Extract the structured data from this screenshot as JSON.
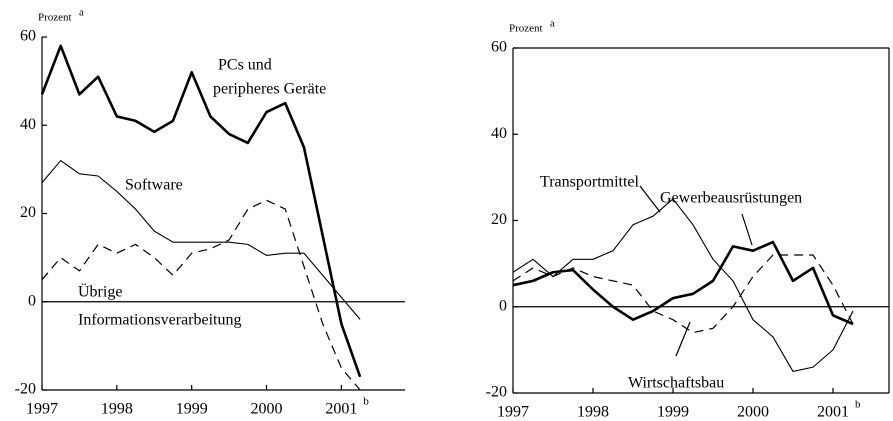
{
  "chart_data": [
    {
      "type": "line",
      "ylabel": "Prozent",
      "ylabel_note": "a",
      "x_note": "b",
      "frame": "axes",
      "zero_line": true,
      "xlim": [
        1997,
        2001.85
      ],
      "xticks": [
        1997,
        1998,
        1999,
        2000,
        2001
      ],
      "ylim": [
        -20,
        60
      ],
      "yticks": [
        -20,
        0,
        20,
        40,
        60
      ],
      "x": [
        1997,
        1997.25,
        1997.5,
        1997.75,
        1998,
        1998.25,
        1998.5,
        1998.75,
        1999,
        1999.25,
        1999.5,
        1999.75,
        2000,
        2000.25,
        2000.5,
        2000.75,
        2001,
        2001.25
      ],
      "series": [
        {
          "name": [
            "PCs und",
            "peripheres Geräte"
          ],
          "color": "#000",
          "style": "solid",
          "linewidth": 2.6,
          "values": [
            47,
            58,
            47,
            51,
            42,
            41,
            38.5,
            41,
            52,
            42,
            38,
            36,
            43,
            45,
            35,
            15,
            -5,
            -17
          ]
        },
        {
          "name": [
            "Software"
          ],
          "color": "#000",
          "style": "solid",
          "linewidth": 1.1,
          "values": [
            27,
            32,
            29,
            28.5,
            25,
            21,
            16,
            13.5,
            13.5,
            13.5,
            13.5,
            13,
            10.5,
            11,
            11,
            6,
            1,
            -4
          ]
        },
        {
          "name": [
            "Übrige",
            "Informationsverarbeitung"
          ],
          "color": "#000",
          "style": "dashed",
          "linewidth": 1.2,
          "values": [
            5,
            10,
            7,
            13,
            11,
            13,
            10,
            6,
            11,
            12,
            14,
            21,
            23,
            21,
            8,
            -5,
            -15,
            -20
          ]
        }
      ]
    },
    {
      "type": "line",
      "ylabel": "Prozent",
      "ylabel_note": "a",
      "x_note": "b",
      "frame": "box",
      "zero_line": true,
      "xlim": [
        1997,
        2001.7
      ],
      "xticks": [
        1997,
        1998,
        1999,
        2000,
        2001
      ],
      "ylim": [
        -20,
        60
      ],
      "yticks": [
        -20,
        0,
        20,
        40,
        60
      ],
      "x": [
        1997,
        1997.25,
        1997.5,
        1997.75,
        1998,
        1998.25,
        1998.5,
        1998.75,
        1999,
        1999.25,
        1999.5,
        1999.75,
        2000,
        2000.25,
        2000.5,
        2000.75,
        2001,
        2001.25
      ],
      "series": [
        {
          "name": [
            "Transportmittel"
          ],
          "color": "#000",
          "style": "solid",
          "linewidth": 1.1,
          "values": [
            8,
            11,
            7,
            11,
            11,
            13,
            19,
            21,
            25,
            19,
            11,
            6,
            -3,
            -7,
            -15,
            -14,
            -10,
            -1
          ]
        },
        {
          "name": [
            "Gewerbeausrüstungen"
          ],
          "color": "#000",
          "style": "solid",
          "linewidth": 2.6,
          "values": [
            5,
            6,
            8,
            8.5,
            4,
            0,
            -3,
            -1,
            2,
            3,
            6,
            14,
            13,
            15,
            6,
            9,
            -2,
            -4
          ]
        },
        {
          "name": [
            "Wirtschaftsbau"
          ],
          "color": "#000",
          "style": "dashed",
          "linewidth": 1.2,
          "values": [
            6,
            9,
            7,
            9,
            7,
            6,
            5,
            -1,
            -3,
            -6,
            -5,
            0,
            7,
            12,
            12,
            12,
            5,
            -4
          ]
        }
      ]
    }
  ]
}
